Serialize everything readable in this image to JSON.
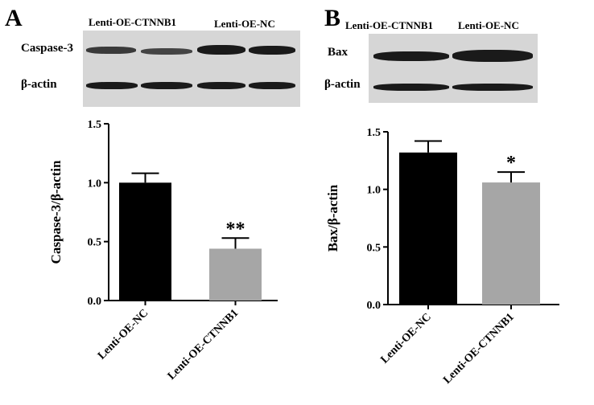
{
  "panel_a": {
    "letter": "A",
    "blot": {
      "lane_labels": [
        "Lenti-OE-CTNNB1",
        "Lenti-OE-NC"
      ],
      "row_labels": [
        "Caspase-3",
        "β-actin"
      ]
    }
  },
  "panel_b": {
    "letter": "B",
    "blot": {
      "lane_labels": [
        "Lenti-OE-CTNNB1",
        "Lenti-OE-NC"
      ],
      "row_labels": [
        "Bax",
        "β-actin"
      ]
    }
  },
  "chart_data": [
    {
      "type": "bar",
      "title": "",
      "xlabel": "",
      "ylabel": "Caspase-3/β-actin",
      "categories": [
        "Lenti-OE-NC",
        "Lenti-OE-CTNNB1"
      ],
      "values": [
        1.0,
        0.44
      ],
      "errors": [
        0.08,
        0.09
      ],
      "annotations": [
        "",
        "**"
      ],
      "ylim": [
        0,
        1.5
      ],
      "yticks": [
        "0.0",
        "0.5",
        "1.0",
        "1.5"
      ],
      "bar_colors": [
        "#000000",
        "#a6a6a6"
      ],
      "grid": false
    },
    {
      "type": "bar",
      "title": "",
      "xlabel": "",
      "ylabel": "Bax/β-actin",
      "categories": [
        "Lenti-OE-NC",
        "Lenti-OE-CTNNB1"
      ],
      "values": [
        1.32,
        1.06
      ],
      "errors": [
        0.1,
        0.09
      ],
      "annotations": [
        "",
        "*"
      ],
      "ylim": [
        0,
        1.5
      ],
      "yticks": [
        "0.0",
        "0.5",
        "1.0",
        "1.5"
      ],
      "bar_colors": [
        "#000000",
        "#a6a6a6"
      ],
      "grid": false
    }
  ]
}
